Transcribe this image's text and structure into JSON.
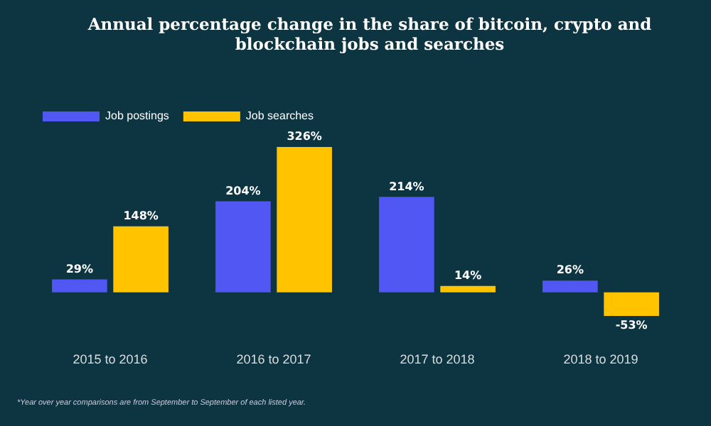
{
  "chart_data": {
    "type": "bar",
    "title": "Annual percentage change in the share of bitcoin, crypto and blockchain jobs and searches",
    "categories": [
      "2015 to 2016",
      "2016 to 2017",
      "2017 to 2018",
      "2018 to 2019"
    ],
    "series": [
      {
        "name": "Job postings",
        "color": "#5157f2",
        "values": [
          29,
          204,
          214,
          26
        ],
        "value_labels": [
          "29%",
          "204%",
          "214%",
          "26%"
        ]
      },
      {
        "name": "Job searches",
        "color": "#ffc300",
        "values": [
          148,
          326,
          14,
          -53
        ],
        "value_labels": [
          "148%",
          "326%",
          "14%",
          "-53%"
        ]
      }
    ],
    "legend": "top left",
    "annotations": [
      "*Year over year comparisons are from September to September of each listed year."
    ]
  }
}
